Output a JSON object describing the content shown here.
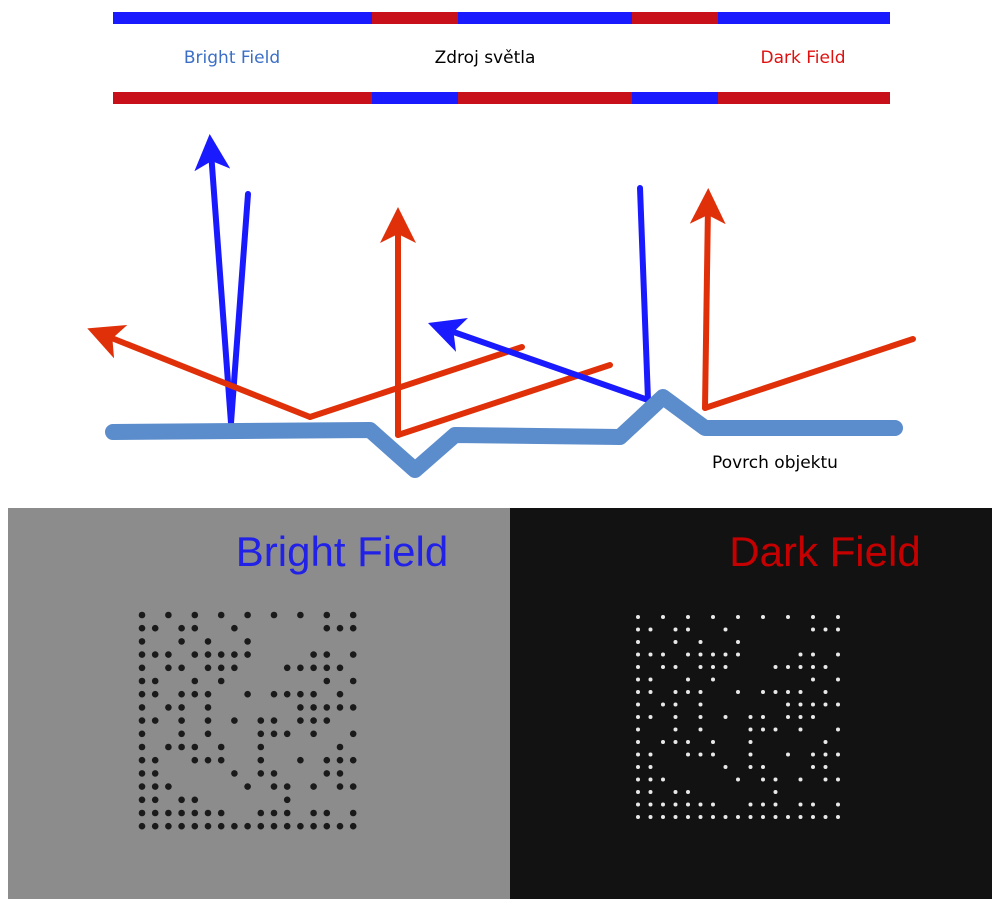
{
  "light_source": {
    "bright_label": "Bright Field",
    "title": "Zdroj světla",
    "dark_label": "Dark Field"
  },
  "surface": {
    "label": "Povrch objektu"
  },
  "photos": {
    "bright_title": "Bright Field",
    "dark_title": "Dark Field"
  }
}
